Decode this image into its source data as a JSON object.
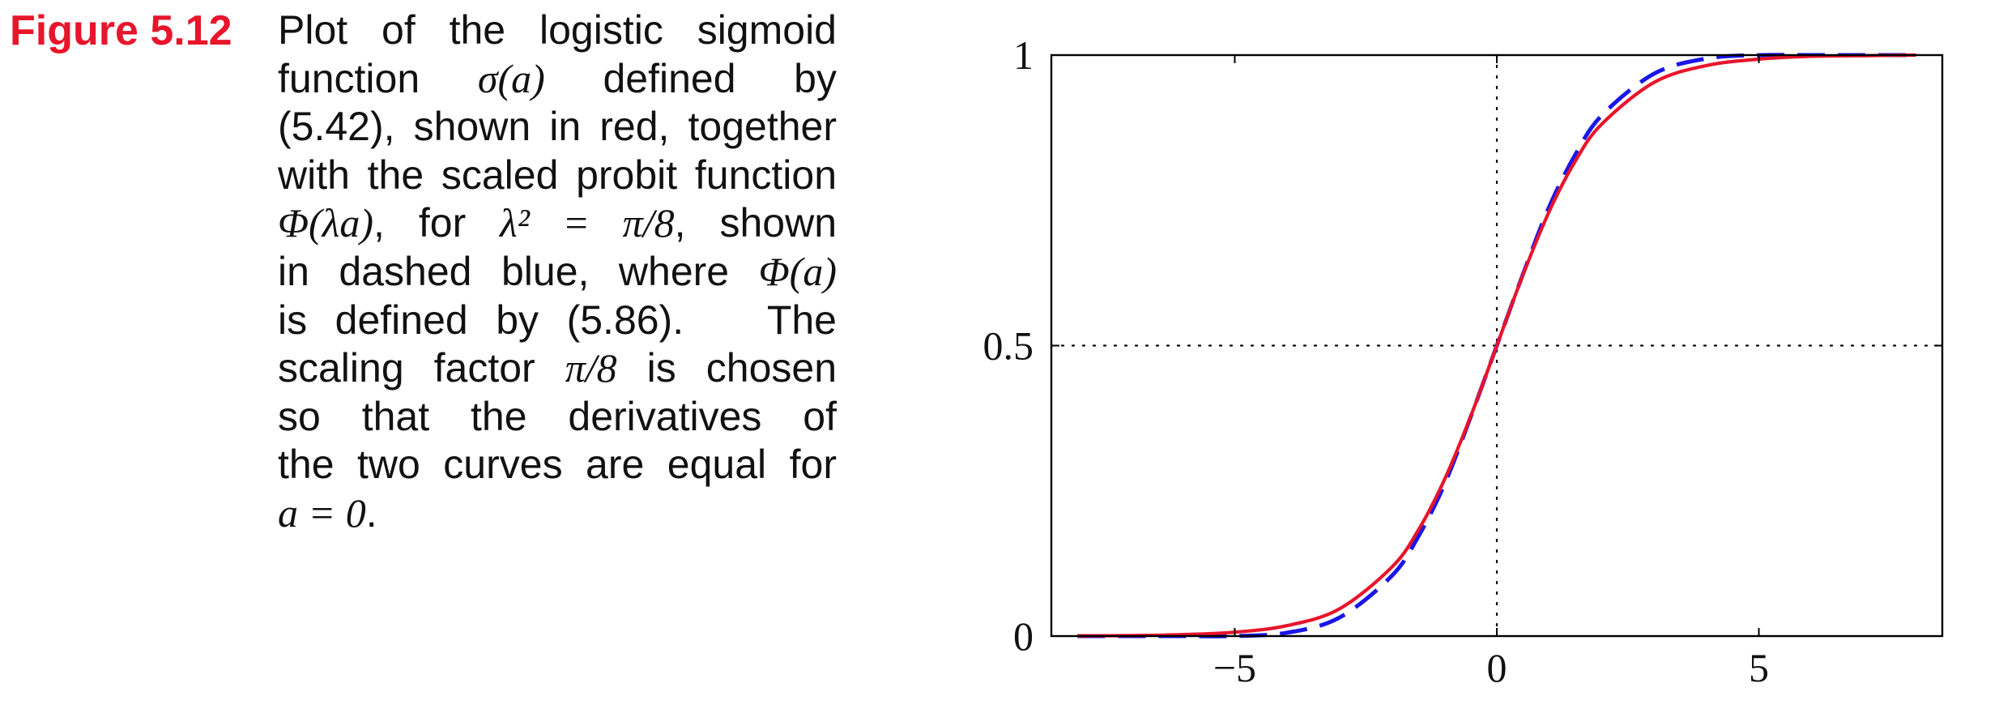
{
  "caption": {
    "label": "Figure 5.12",
    "lines": [
      [
        "Plot of the logistic sigmoid"
      ],
      [
        "function ",
        "σ(a)",
        " defined by"
      ],
      [
        "(5.42), shown in red, together"
      ],
      [
        "with the scaled probit function"
      ],
      [
        "Φ(λa)",
        ", for ",
        "λ² = π/8",
        ", shown"
      ],
      [
        "in dashed blue, where ",
        "Φ(a)"
      ],
      [
        "is defined by (5.86).   The"
      ],
      [
        "scaling factor ",
        "π/8",
        " is chosen"
      ],
      [
        "so that the derivatives of"
      ],
      [
        "the two curves are equal for"
      ],
      [
        "a = 0",
        "."
      ]
    ]
  },
  "chart_data": {
    "type": "line",
    "title": "",
    "xlabel": "",
    "ylabel": "",
    "xlim": [
      -8.5,
      8.5
    ],
    "ylim": [
      0,
      1
    ],
    "xticks": [
      -5,
      0,
      5
    ],
    "xtick_labels": [
      "−5",
      "0",
      "5"
    ],
    "yticks": [
      0,
      0.5,
      1
    ],
    "ytick_labels": [
      "0",
      "0.5",
      "1"
    ],
    "grid": "dotted lines at x = 0 and y = 0.5",
    "x": [
      -8,
      -7,
      -6,
      -5,
      -4,
      -3,
      -2,
      -1.5,
      -1,
      -0.5,
      0,
      0.5,
      1,
      1.5,
      2,
      3,
      4,
      5,
      6,
      7,
      8
    ],
    "series": [
      {
        "color": "#e8152b",
        "style": "solid",
        "values": [
          0.0003,
          0.0009,
          0.0025,
          0.0067,
          0.018,
          0.047,
          0.119,
          0.182,
          0.269,
          0.378,
          0.5,
          0.622,
          0.731,
          0.818,
          0.881,
          0.953,
          0.982,
          0.993,
          0.998,
          0.999,
          1.0
        ]
      },
      {
        "color": "#1a16e8",
        "style": "dashed",
        "values": [
          0.0,
          0.0,
          0.0,
          0.0001,
          0.0058,
          0.032,
          0.104,
          0.171,
          0.261,
          0.377,
          0.5,
          0.623,
          0.739,
          0.829,
          0.896,
          0.968,
          0.994,
          0.9999,
          1.0,
          1.0,
          1.0
        ]
      }
    ]
  }
}
